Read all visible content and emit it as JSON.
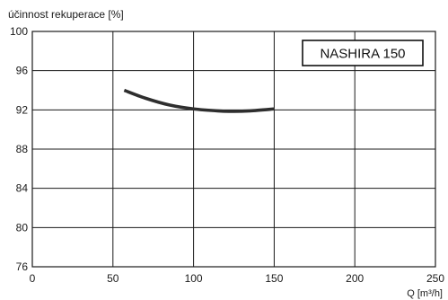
{
  "chart_data": {
    "type": "line",
    "title": "",
    "ylabel": "účinnost rekuperace [%]",
    "xlabel": "Q [m³/h]",
    "xlim": [
      0,
      250
    ],
    "ylim": [
      76,
      100
    ],
    "x_ticks": [
      0,
      50,
      100,
      150,
      200,
      250
    ],
    "y_ticks": [
      76,
      80,
      84,
      88,
      92,
      96,
      100
    ],
    "grid": true,
    "legend_placement": "top-right",
    "series": [
      {
        "name": "NASHIRA 150",
        "x": [
          57,
          70,
          85,
          100,
          115,
          125,
          135,
          150
        ],
        "y": [
          94.0,
          93.2,
          92.5,
          92.1,
          91.9,
          91.85,
          91.9,
          92.1
        ]
      }
    ],
    "colors": {
      "line": "#2e2e2e",
      "grid": "#1a1a1a",
      "text": "#1a1a1a"
    }
  }
}
